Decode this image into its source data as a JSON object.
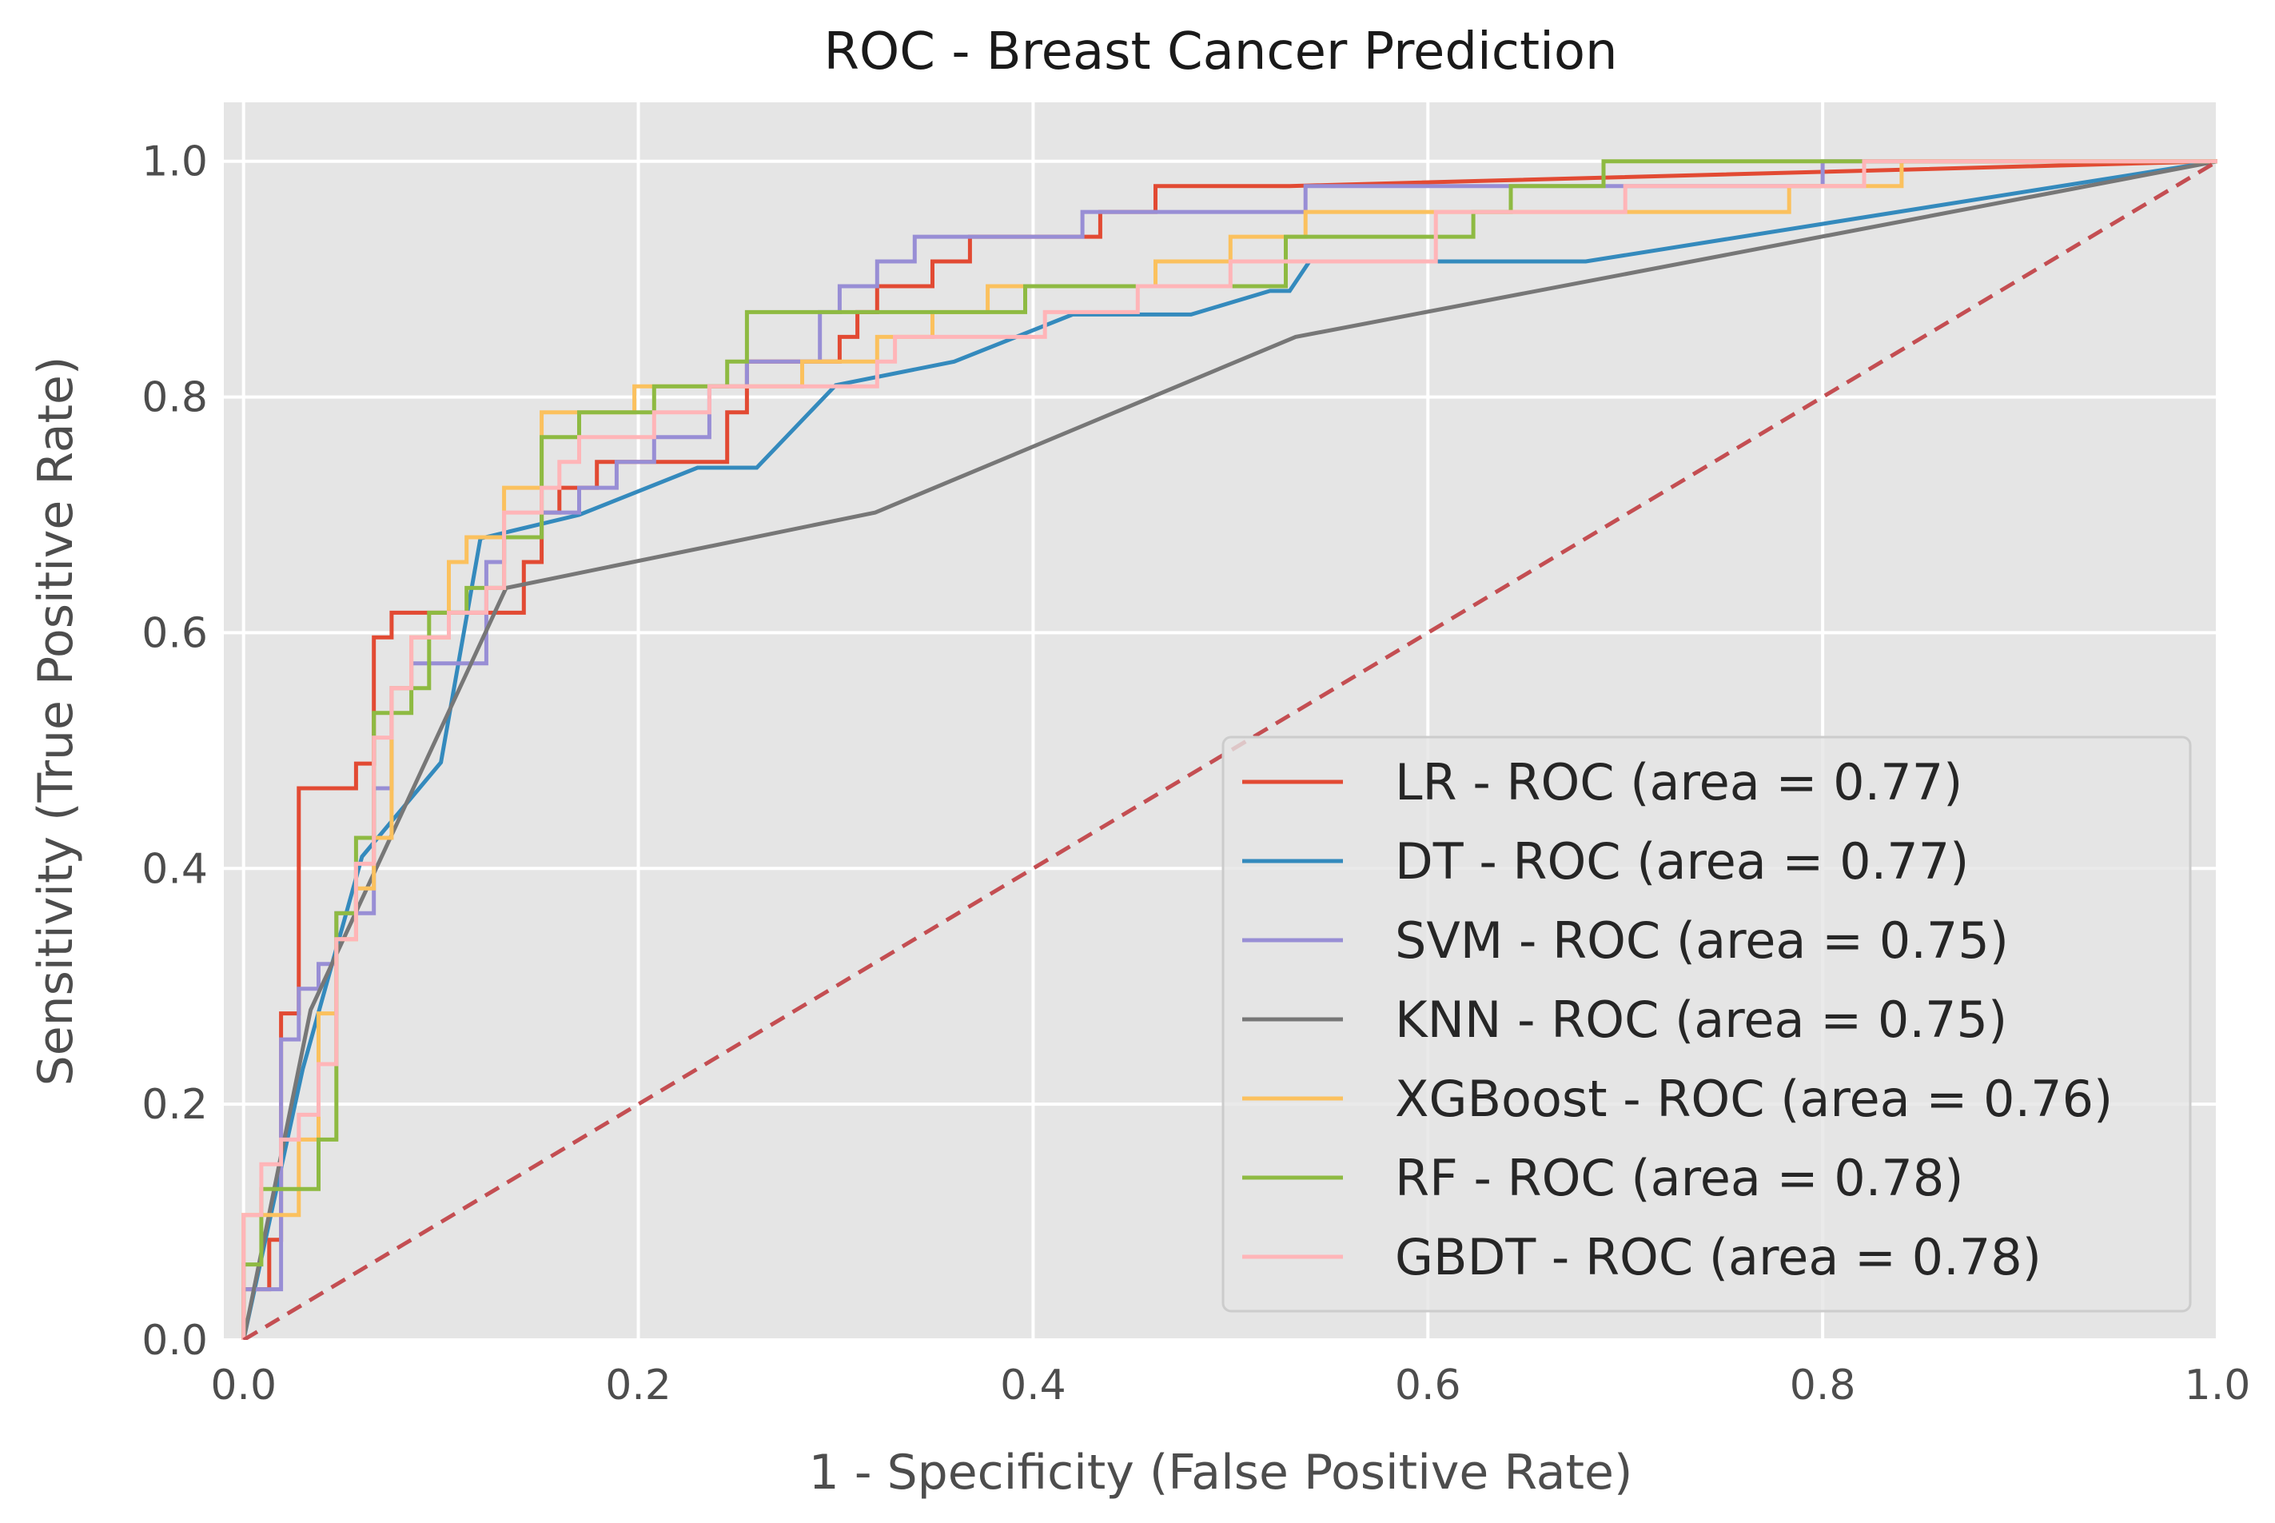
{
  "chart_data": {
    "type": "line",
    "title": "ROC - Breast Cancer Prediction",
    "xlabel": "1 - Specificity (False Positive Rate)",
    "ylabel": "Sensitivity (True Positive Rate)",
    "xlim": [
      -0.01,
      1.0
    ],
    "ylim": [
      0.0,
      1.05
    ],
    "xticks": [
      "0.0",
      "0.2",
      "0.4",
      "0.6",
      "0.8",
      "1.0"
    ],
    "yticks": [
      "0.0",
      "0.2",
      "0.4",
      "0.6",
      "0.8",
      "1.0"
    ],
    "grid": true,
    "legend_position": "lower-right",
    "background": "#e5e5e5",
    "series": [
      {
        "name": "LR - ROC (area = 0.77)",
        "color": "#e24a33",
        "points": [
          [
            0,
            0
          ],
          [
            0,
            0.043
          ],
          [
            0.013,
            0.043
          ],
          [
            0.013,
            0.085
          ],
          [
            0.019,
            0.085
          ],
          [
            0.019,
            0.277
          ],
          [
            0.028,
            0.277
          ],
          [
            0.028,
            0.468
          ],
          [
            0.057,
            0.468
          ],
          [
            0.057,
            0.489
          ],
          [
            0.066,
            0.489
          ],
          [
            0.066,
            0.596
          ],
          [
            0.075,
            0.596
          ],
          [
            0.075,
            0.617
          ],
          [
            0.142,
            0.617
          ],
          [
            0.142,
            0.66
          ],
          [
            0.151,
            0.66
          ],
          [
            0.151,
            0.702
          ],
          [
            0.16,
            0.702
          ],
          [
            0.16,
            0.723
          ],
          [
            0.179,
            0.723
          ],
          [
            0.179,
            0.745
          ],
          [
            0.245,
            0.745
          ],
          [
            0.245,
            0.787
          ],
          [
            0.255,
            0.787
          ],
          [
            0.255,
            0.83
          ],
          [
            0.302,
            0.83
          ],
          [
            0.302,
            0.851
          ],
          [
            0.311,
            0.851
          ],
          [
            0.311,
            0.872
          ],
          [
            0.321,
            0.872
          ],
          [
            0.321,
            0.894
          ],
          [
            0.349,
            0.894
          ],
          [
            0.349,
            0.915
          ],
          [
            0.368,
            0.915
          ],
          [
            0.368,
            0.936
          ],
          [
            0.434,
            0.936
          ],
          [
            0.434,
            0.957
          ],
          [
            0.462,
            0.957
          ],
          [
            0.462,
            0.979
          ],
          [
            0.53,
            0.979
          ],
          [
            0.53,
            0.979
          ],
          [
            1,
            1
          ]
        ]
      },
      {
        "name": "DT - ROC (area = 0.77)",
        "color": "#348abd",
        "points": [
          [
            0,
            0
          ],
          [
            0.03,
            0.23
          ],
          [
            0.06,
            0.41
          ],
          [
            0.1,
            0.49
          ],
          [
            0.12,
            0.68
          ],
          [
            0.17,
            0.7
          ],
          [
            0.23,
            0.74
          ],
          [
            0.26,
            0.74
          ],
          [
            0.3,
            0.81
          ],
          [
            0.36,
            0.83
          ],
          [
            0.42,
            0.87
          ],
          [
            0.48,
            0.87
          ],
          [
            0.52,
            0.89
          ],
          [
            0.53,
            0.89
          ],
          [
            0.54,
            0.915
          ],
          [
            0.68,
            0.915
          ],
          [
            1,
            1
          ]
        ]
      },
      {
        "name": "SVM - ROC (area = 0.75)",
        "color": "#988ed5",
        "points": [
          [
            0,
            0
          ],
          [
            0,
            0.043
          ],
          [
            0.019,
            0.043
          ],
          [
            0.019,
            0.255
          ],
          [
            0.028,
            0.255
          ],
          [
            0.028,
            0.298
          ],
          [
            0.038,
            0.298
          ],
          [
            0.038,
            0.319
          ],
          [
            0.047,
            0.319
          ],
          [
            0.047,
            0.362
          ],
          [
            0.066,
            0.362
          ],
          [
            0.066,
            0.468
          ],
          [
            0.075,
            0.468
          ],
          [
            0.075,
            0.553
          ],
          [
            0.085,
            0.553
          ],
          [
            0.085,
            0.574
          ],
          [
            0.123,
            0.574
          ],
          [
            0.123,
            0.66
          ],
          [
            0.132,
            0.66
          ],
          [
            0.132,
            0.681
          ],
          [
            0.151,
            0.681
          ],
          [
            0.151,
            0.702
          ],
          [
            0.17,
            0.702
          ],
          [
            0.17,
            0.723
          ],
          [
            0.189,
            0.723
          ],
          [
            0.189,
            0.745
          ],
          [
            0.208,
            0.745
          ],
          [
            0.208,
            0.766
          ],
          [
            0.236,
            0.766
          ],
          [
            0.236,
            0.809
          ],
          [
            0.255,
            0.809
          ],
          [
            0.255,
            0.83
          ],
          [
            0.292,
            0.83
          ],
          [
            0.292,
            0.872
          ],
          [
            0.302,
            0.872
          ],
          [
            0.302,
            0.894
          ],
          [
            0.321,
            0.894
          ],
          [
            0.321,
            0.915
          ],
          [
            0.34,
            0.915
          ],
          [
            0.34,
            0.936
          ],
          [
            0.425,
            0.936
          ],
          [
            0.425,
            0.957
          ],
          [
            0.538,
            0.957
          ],
          [
            0.538,
            0.979
          ],
          [
            0.8,
            0.979
          ],
          [
            0.8,
            1
          ],
          [
            1,
            1
          ]
        ]
      },
      {
        "name": "KNN - ROC (area = 0.75)",
        "color": "#777777",
        "points": [
          [
            0,
            0
          ],
          [
            0.034,
            0.28
          ],
          [
            0.133,
            0.638
          ],
          [
            0.32,
            0.702
          ],
          [
            0.533,
            0.851
          ],
          [
            1,
            1
          ]
        ]
      },
      {
        "name": "XGBoost - ROC (area = 0.76)",
        "color": "#fbc15e",
        "points": [
          [
            0,
            0
          ],
          [
            0,
            0.106
          ],
          [
            0.028,
            0.106
          ],
          [
            0.028,
            0.17
          ],
          [
            0.038,
            0.17
          ],
          [
            0.038,
            0.277
          ],
          [
            0.047,
            0.277
          ],
          [
            0.047,
            0.34
          ],
          [
            0.057,
            0.34
          ],
          [
            0.057,
            0.383
          ],
          [
            0.066,
            0.383
          ],
          [
            0.066,
            0.426
          ],
          [
            0.075,
            0.426
          ],
          [
            0.075,
            0.553
          ],
          [
            0.085,
            0.553
          ],
          [
            0.085,
            0.596
          ],
          [
            0.104,
            0.596
          ],
          [
            0.104,
            0.66
          ],
          [
            0.113,
            0.66
          ],
          [
            0.113,
            0.681
          ],
          [
            0.132,
            0.681
          ],
          [
            0.132,
            0.723
          ],
          [
            0.151,
            0.723
          ],
          [
            0.151,
            0.787
          ],
          [
            0.198,
            0.787
          ],
          [
            0.198,
            0.809
          ],
          [
            0.283,
            0.809
          ],
          [
            0.283,
            0.83
          ],
          [
            0.321,
            0.83
          ],
          [
            0.321,
            0.851
          ],
          [
            0.349,
            0.851
          ],
          [
            0.349,
            0.872
          ],
          [
            0.377,
            0.872
          ],
          [
            0.377,
            0.894
          ],
          [
            0.462,
            0.894
          ],
          [
            0.462,
            0.915
          ],
          [
            0.5,
            0.915
          ],
          [
            0.5,
            0.936
          ],
          [
            0.538,
            0.936
          ],
          [
            0.538,
            0.957
          ],
          [
            0.783,
            0.957
          ],
          [
            0.783,
            0.979
          ],
          [
            0.84,
            0.979
          ],
          [
            0.84,
            1
          ],
          [
            1,
            1
          ]
        ]
      },
      {
        "name": "RF - ROC (area = 0.78)",
        "color": "#8eba42",
        "points": [
          [
            0,
            0
          ],
          [
            0,
            0.064
          ],
          [
            0.009,
            0.064
          ],
          [
            0.009,
            0.128
          ],
          [
            0.038,
            0.128
          ],
          [
            0.038,
            0.17
          ],
          [
            0.047,
            0.17
          ],
          [
            0.047,
            0.362
          ],
          [
            0.057,
            0.362
          ],
          [
            0.057,
            0.426
          ],
          [
            0.066,
            0.426
          ],
          [
            0.066,
            0.532
          ],
          [
            0.085,
            0.532
          ],
          [
            0.085,
            0.553
          ],
          [
            0.094,
            0.553
          ],
          [
            0.094,
            0.617
          ],
          [
            0.113,
            0.617
          ],
          [
            0.113,
            0.638
          ],
          [
            0.132,
            0.638
          ],
          [
            0.132,
            0.681
          ],
          [
            0.151,
            0.681
          ],
          [
            0.151,
            0.766
          ],
          [
            0.17,
            0.766
          ],
          [
            0.17,
            0.787
          ],
          [
            0.208,
            0.787
          ],
          [
            0.208,
            0.809
          ],
          [
            0.245,
            0.809
          ],
          [
            0.245,
            0.83
          ],
          [
            0.255,
            0.83
          ],
          [
            0.255,
            0.872
          ],
          [
            0.396,
            0.872
          ],
          [
            0.396,
            0.894
          ],
          [
            0.528,
            0.894
          ],
          [
            0.528,
            0.936
          ],
          [
            0.623,
            0.936
          ],
          [
            0.623,
            0.957
          ],
          [
            0.642,
            0.957
          ],
          [
            0.642,
            0.979
          ],
          [
            0.689,
            0.979
          ],
          [
            0.689,
            1
          ],
          [
            1,
            1
          ]
        ]
      },
      {
        "name": "GBDT - ROC (area = 0.78)",
        "color": "#ffb5b8",
        "points": [
          [
            0,
            0
          ],
          [
            0,
            0.106
          ],
          [
            0.009,
            0.106
          ],
          [
            0.009,
            0.149
          ],
          [
            0.019,
            0.149
          ],
          [
            0.019,
            0.17
          ],
          [
            0.028,
            0.17
          ],
          [
            0.028,
            0.191
          ],
          [
            0.038,
            0.191
          ],
          [
            0.038,
            0.234
          ],
          [
            0.047,
            0.234
          ],
          [
            0.047,
            0.34
          ],
          [
            0.057,
            0.34
          ],
          [
            0.057,
            0.404
          ],
          [
            0.066,
            0.404
          ],
          [
            0.066,
            0.511
          ],
          [
            0.075,
            0.511
          ],
          [
            0.075,
            0.553
          ],
          [
            0.085,
            0.553
          ],
          [
            0.085,
            0.596
          ],
          [
            0.104,
            0.596
          ],
          [
            0.104,
            0.617
          ],
          [
            0.123,
            0.617
          ],
          [
            0.123,
            0.638
          ],
          [
            0.132,
            0.638
          ],
          [
            0.132,
            0.702
          ],
          [
            0.151,
            0.702
          ],
          [
            0.151,
            0.723
          ],
          [
            0.16,
            0.723
          ],
          [
            0.16,
            0.745
          ],
          [
            0.17,
            0.745
          ],
          [
            0.17,
            0.766
          ],
          [
            0.208,
            0.766
          ],
          [
            0.208,
            0.787
          ],
          [
            0.236,
            0.787
          ],
          [
            0.236,
            0.809
          ],
          [
            0.321,
            0.809
          ],
          [
            0.321,
            0.83
          ],
          [
            0.33,
            0.83
          ],
          [
            0.33,
            0.851
          ],
          [
            0.406,
            0.851
          ],
          [
            0.406,
            0.872
          ],
          [
            0.453,
            0.872
          ],
          [
            0.453,
            0.894
          ],
          [
            0.5,
            0.894
          ],
          [
            0.5,
            0.915
          ],
          [
            0.604,
            0.915
          ],
          [
            0.604,
            0.957
          ],
          [
            0.7,
            0.957
          ],
          [
            0.7,
            0.979
          ],
          [
            0.821,
            0.979
          ],
          [
            0.821,
            1
          ],
          [
            1,
            1
          ]
        ]
      }
    ],
    "reference_line": {
      "color": "#c44e52",
      "points": [
        [
          0,
          0
        ],
        [
          1,
          1
        ]
      ]
    }
  }
}
